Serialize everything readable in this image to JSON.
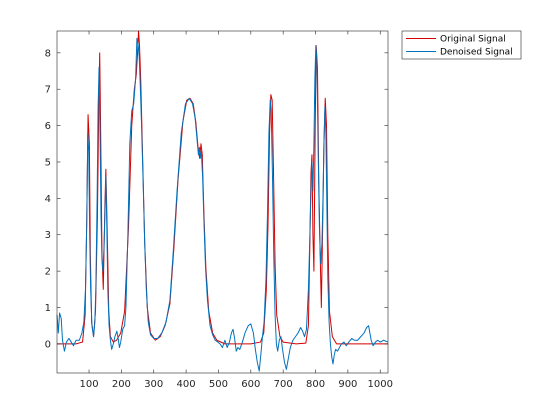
{
  "chart_data": {
    "type": "line",
    "xlim": [
      1,
      1024
    ],
    "ylim": [
      -0.8,
      8.6
    ],
    "x_ticks": [
      100,
      200,
      300,
      400,
      500,
      600,
      700,
      800,
      900,
      1000
    ],
    "y_ticks": [
      0,
      1,
      2,
      3,
      4,
      5,
      6,
      7,
      8
    ],
    "grid": false,
    "legend_placement": "outside-top-right",
    "series": [
      {
        "name": "Original Signal",
        "color": "#d40000",
        "points": [
          [
            1,
            0
          ],
          [
            60,
            0
          ],
          [
            80,
            0.05
          ],
          [
            88,
            0.8
          ],
          [
            93,
            3.5
          ],
          [
            97,
            6.3
          ],
          [
            101,
            5.5
          ],
          [
            104,
            2.5
          ],
          [
            108,
            0.6
          ],
          [
            114,
            0.2
          ],
          [
            120,
            0.9
          ],
          [
            126,
            3.5
          ],
          [
            130,
            6.5
          ],
          [
            133,
            8.0
          ],
          [
            136,
            5.8
          ],
          [
            140,
            2.5
          ],
          [
            144,
            1.5
          ],
          [
            149,
            3.8
          ],
          [
            152,
            4.8
          ],
          [
            156,
            3.2
          ],
          [
            161,
            0.9
          ],
          [
            166,
            0.2
          ],
          [
            175,
            0.05
          ],
          [
            185,
            0.1
          ],
          [
            198,
            0.3
          ],
          [
            210,
            0.9
          ],
          [
            222,
            3.2
          ],
          [
            232,
            6.0
          ],
          [
            240,
            7.0
          ],
          [
            246,
            7.4
          ],
          [
            250,
            8.0
          ],
          [
            253,
            8.6
          ],
          [
            256,
            8.2
          ],
          [
            260,
            7.2
          ],
          [
            266,
            5.0
          ],
          [
            272,
            2.8
          ],
          [
            280,
            1.0
          ],
          [
            290,
            0.3
          ],
          [
            305,
            0.1
          ],
          [
            320,
            0.2
          ],
          [
            335,
            0.5
          ],
          [
            350,
            1.1
          ],
          [
            362,
            2.6
          ],
          [
            375,
            4.5
          ],
          [
            390,
            6.1
          ],
          [
            402,
            6.7
          ],
          [
            412,
            6.75
          ],
          [
            422,
            6.6
          ],
          [
            430,
            6.1
          ],
          [
            438,
            5.3
          ],
          [
            442,
            5.1
          ],
          [
            446,
            5.5
          ],
          [
            450,
            5.2
          ],
          [
            455,
            3.6
          ],
          [
            461,
            2.1
          ],
          [
            470,
            0.9
          ],
          [
            482,
            0.3
          ],
          [
            495,
            0.1
          ],
          [
            520,
            0
          ],
          [
            600,
            0
          ],
          [
            630,
            0.05
          ],
          [
            640,
            0.3
          ],
          [
            648,
            1.5
          ],
          [
            653,
            3.2
          ],
          [
            658,
            5.8
          ],
          [
            662,
            6.85
          ],
          [
            666,
            6.7
          ],
          [
            670,
            4.8
          ],
          [
            675,
            2.2
          ],
          [
            680,
            0.8
          ],
          [
            690,
            0.2
          ],
          [
            700,
            0.05
          ],
          [
            740,
            0
          ],
          [
            770,
            0.02
          ],
          [
            778,
            0.5
          ],
          [
            782,
            2.5
          ],
          [
            786,
            4.7
          ],
          [
            789,
            5.2
          ],
          [
            792,
            3.0
          ],
          [
            795,
            2.0
          ],
          [
            799,
            6.0
          ],
          [
            802,
            8.2
          ],
          [
            806,
            7.6
          ],
          [
            810,
            4.5
          ],
          [
            814,
            2.6
          ],
          [
            818,
            1.0
          ],
          [
            822,
            3.2
          ],
          [
            826,
            5.5
          ],
          [
            830,
            6.75
          ],
          [
            834,
            6.0
          ],
          [
            838,
            3.0
          ],
          [
            843,
            0.9
          ],
          [
            852,
            0.2
          ],
          [
            865,
            0
          ],
          [
            1024,
            0
          ]
        ]
      },
      {
        "name": "Denoised Signal",
        "color": "#0072bd",
        "points": [
          [
            1,
            0.8
          ],
          [
            5,
            0.3
          ],
          [
            9,
            0.85
          ],
          [
            14,
            0.7
          ],
          [
            18,
            0.1
          ],
          [
            24,
            -0.2
          ],
          [
            30,
            0.05
          ],
          [
            38,
            0.15
          ],
          [
            45,
            0.05
          ],
          [
            52,
            -0.05
          ],
          [
            60,
            0.1
          ],
          [
            70,
            0.1
          ],
          [
            78,
            0.3
          ],
          [
            84,
            0.6
          ],
          [
            89,
            1.5
          ],
          [
            93,
            3.3
          ],
          [
            96,
            5.8
          ],
          [
            99,
            5.3
          ],
          [
            102,
            3.0
          ],
          [
            105,
            1.5
          ],
          [
            109,
            0.5
          ],
          [
            114,
            0.2
          ],
          [
            118,
            0.6
          ],
          [
            121,
            1.5
          ],
          [
            125,
            4.0
          ],
          [
            128,
            6.5
          ],
          [
            131,
            7.6
          ],
          [
            134,
            5.8
          ],
          [
            137,
            3.5
          ],
          [
            140,
            2.3
          ],
          [
            143,
            2.0
          ],
          [
            146,
            2.6
          ],
          [
            149,
            3.5
          ],
          [
            152,
            4.6
          ],
          [
            155,
            3.2
          ],
          [
            158,
            1.5
          ],
          [
            162,
            0.5
          ],
          [
            166,
            0.1
          ],
          [
            170,
            -0.15
          ],
          [
            175,
            0
          ],
          [
            180,
            0.2
          ],
          [
            186,
            0.35
          ],
          [
            190,
            0.15
          ],
          [
            194,
            -0.1
          ],
          [
            198,
            0.05
          ],
          [
            204,
            0.4
          ],
          [
            210,
            0.5
          ],
          [
            214,
            1.0
          ],
          [
            220,
            3.0
          ],
          [
            226,
            5.5
          ],
          [
            232,
            6.4
          ],
          [
            238,
            6.6
          ],
          [
            244,
            7.3
          ],
          [
            248,
            8.4
          ],
          [
            252,
            8.2
          ],
          [
            255,
            7.9
          ],
          [
            258,
            7.2
          ],
          [
            262,
            6.1
          ],
          [
            267,
            4.5
          ],
          [
            272,
            2.8
          ],
          [
            277,
            1.5
          ],
          [
            283,
            0.6
          ],
          [
            290,
            0.25
          ],
          [
            300,
            0.15
          ],
          [
            312,
            0.15
          ],
          [
            325,
            0.3
          ],
          [
            338,
            0.6
          ],
          [
            350,
            1.2
          ],
          [
            360,
            2.5
          ],
          [
            372,
            4.2
          ],
          [
            385,
            5.8
          ],
          [
            398,
            6.6
          ],
          [
            410,
            6.75
          ],
          [
            420,
            6.6
          ],
          [
            428,
            6.2
          ],
          [
            434,
            5.6
          ],
          [
            438,
            5.2
          ],
          [
            441,
            5.4
          ],
          [
            444,
            5.1
          ],
          [
            447,
            5.3
          ],
          [
            451,
            4.6
          ],
          [
            455,
            3.4
          ],
          [
            460,
            2.1
          ],
          [
            466,
            1.2
          ],
          [
            474,
            0.5
          ],
          [
            482,
            0.25
          ],
          [
            490,
            0.1
          ],
          [
            498,
            0.05
          ],
          [
            505,
            0
          ],
          [
            512,
            -0.1
          ],
          [
            520,
            0.1
          ],
          [
            527,
            -0.1
          ],
          [
            534,
            0.05
          ],
          [
            540,
            0.3
          ],
          [
            545,
            0.4
          ],
          [
            550,
            0.15
          ],
          [
            555,
            -0.2
          ],
          [
            560,
            -0.1
          ],
          [
            566,
            -0.15
          ],
          [
            574,
            0.05
          ],
          [
            582,
            0.3
          ],
          [
            592,
            0.5
          ],
          [
            600,
            0.55
          ],
          [
            608,
            0.3
          ],
          [
            614,
            -0.15
          ],
          [
            620,
            -0.5
          ],
          [
            626,
            -0.75
          ],
          [
            631,
            -0.3
          ],
          [
            636,
            0.2
          ],
          [
            641,
            0.6
          ],
          [
            647,
            1.8
          ],
          [
            652,
            3.8
          ],
          [
            656,
            5.8
          ],
          [
            660,
            6.7
          ],
          [
            663,
            6.4
          ],
          [
            667,
            4.6
          ],
          [
            671,
            2.4
          ],
          [
            675,
            0.8
          ],
          [
            679,
            0
          ],
          [
            683,
            -0.2
          ],
          [
            688,
            0.1
          ],
          [
            693,
            0.2
          ],
          [
            698,
            -0.15
          ],
          [
            704,
            -0.5
          ],
          [
            710,
            -0.7
          ],
          [
            716,
            -0.4
          ],
          [
            722,
            -0.1
          ],
          [
            730,
            0.1
          ],
          [
            738,
            0.2
          ],
          [
            746,
            0.3
          ],
          [
            754,
            0.45
          ],
          [
            760,
            0.35
          ],
          [
            766,
            0.2
          ],
          [
            772,
            0.4
          ],
          [
            778,
            1.5
          ],
          [
            782,
            2.8
          ],
          [
            786,
            4.2
          ],
          [
            789,
            5.0
          ],
          [
            792,
            4.2
          ],
          [
            795,
            5.5
          ],
          [
            798,
            7.3
          ],
          [
            801,
            8.2
          ],
          [
            804,
            7.8
          ],
          [
            808,
            5.4
          ],
          [
            812,
            3.2
          ],
          [
            816,
            2.2
          ],
          [
            820,
            2.8
          ],
          [
            823,
            4.0
          ],
          [
            826,
            5.5
          ],
          [
            829,
            6.5
          ],
          [
            832,
            5.8
          ],
          [
            835,
            3.8
          ],
          [
            838,
            1.8
          ],
          [
            842,
            0.6
          ],
          [
            846,
            0
          ],
          [
            850,
            -0.35
          ],
          [
            854,
            -0.55
          ],
          [
            858,
            -0.3
          ],
          [
            862,
            -0.15
          ],
          [
            868,
            -0.2
          ],
          [
            874,
            -0.1
          ],
          [
            880,
            0
          ],
          [
            888,
            0.05
          ],
          [
            895,
            -0.05
          ],
          [
            903,
            0.05
          ],
          [
            912,
            0.15
          ],
          [
            920,
            0.1
          ],
          [
            930,
            0.1
          ],
          [
            940,
            0.2
          ],
          [
            950,
            0.3
          ],
          [
            958,
            0.45
          ],
          [
            964,
            0.5
          ],
          [
            968,
            0.3
          ],
          [
            972,
            0.1
          ],
          [
            978,
            -0.05
          ],
          [
            985,
            0.05
          ],
          [
            992,
            0.1
          ],
          [
            1000,
            0.05
          ],
          [
            1010,
            0.1
          ],
          [
            1024,
            0.05
          ]
        ]
      }
    ]
  }
}
